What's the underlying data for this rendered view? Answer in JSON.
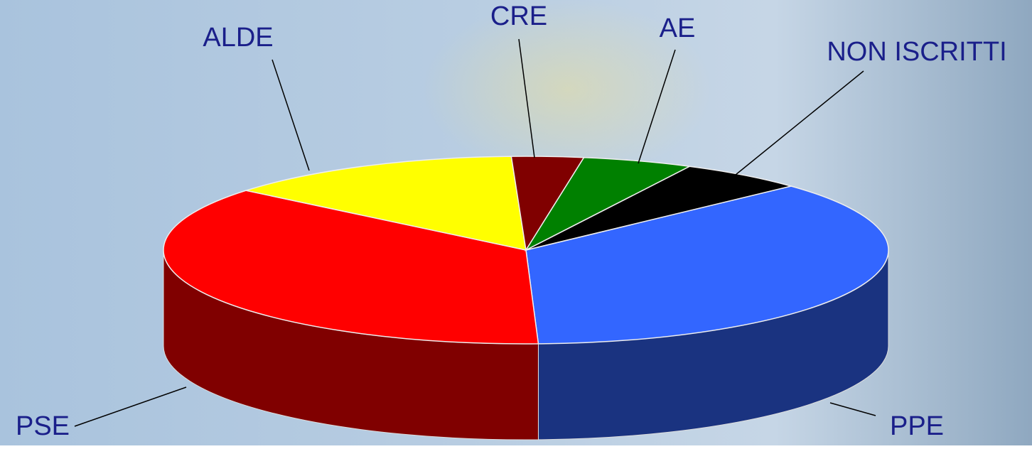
{
  "chart_data": {
    "type": "pie",
    "categories": [
      "PPE",
      "PSE",
      "ALDE",
      "CRE",
      "AE",
      "NON ISCRITTI"
    ],
    "values": [
      36.4,
      36.5,
      13.4,
      3.2,
      4.9,
      5.6
    ],
    "colors": [
      "#3366ff",
      "#ff0000",
      "#ffff00",
      "#800000",
      "#008000",
      "#000000"
    ]
  }
}
